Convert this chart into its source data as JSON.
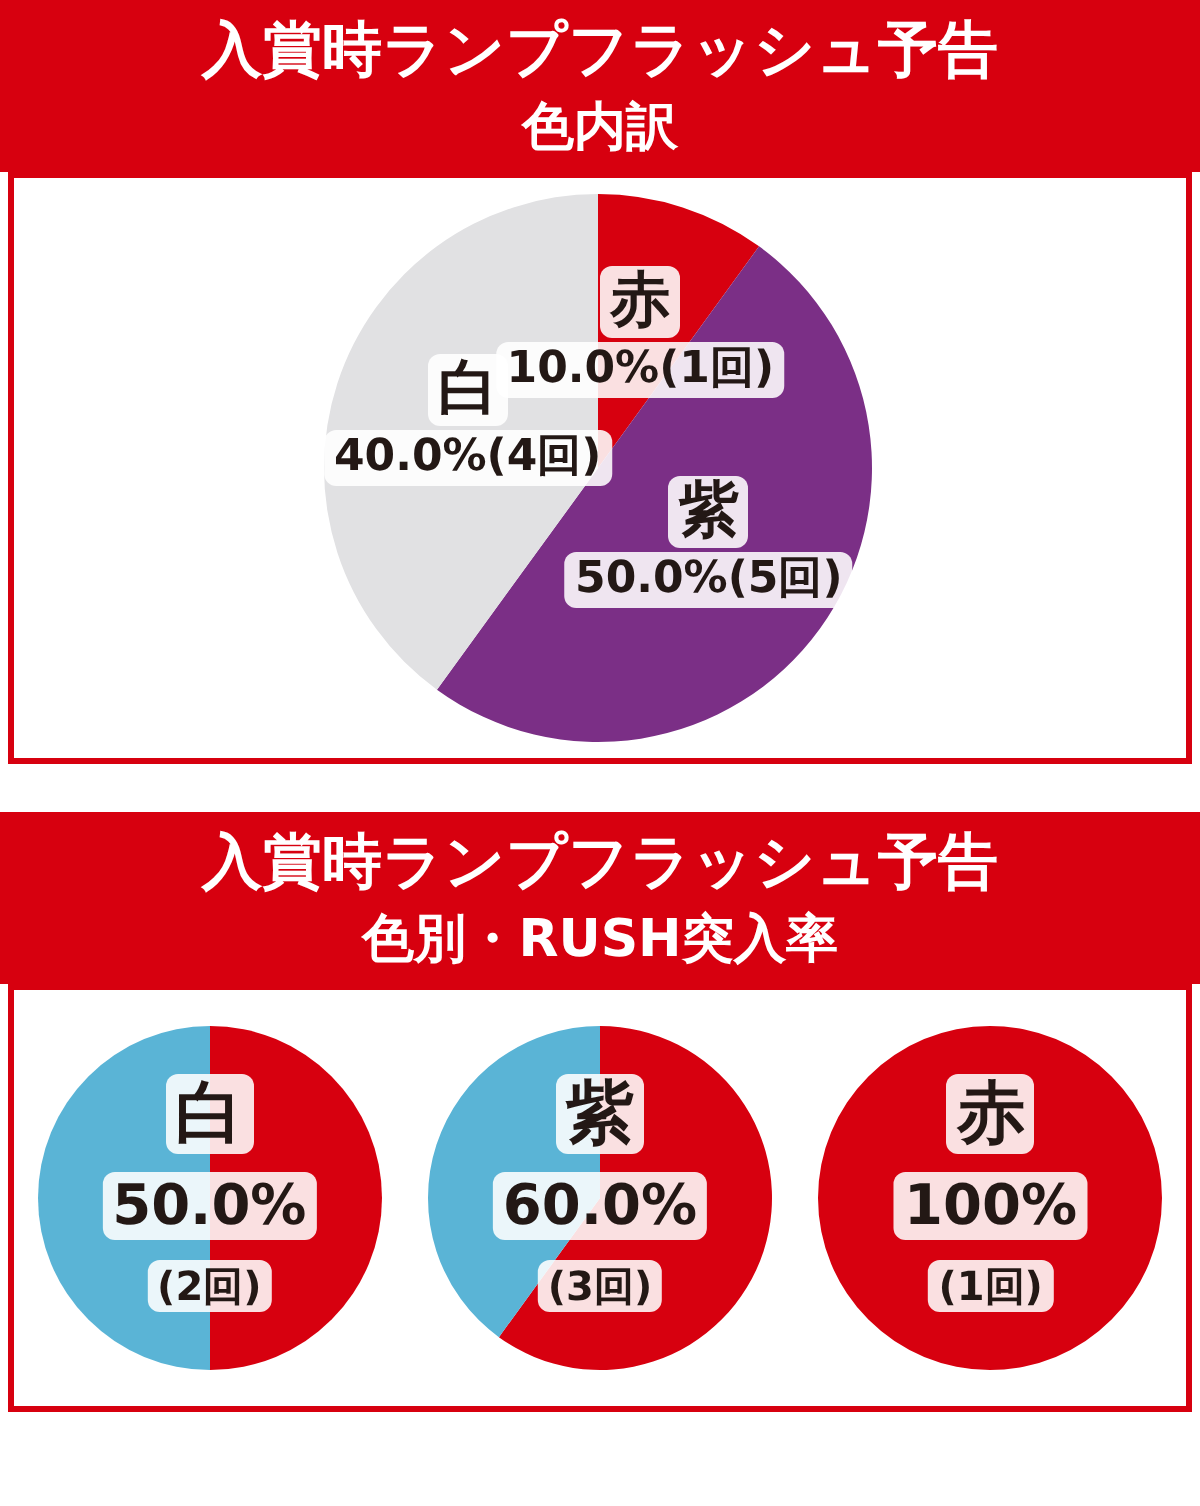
{
  "chart_data": [
    {
      "type": "pie",
      "title": "入賞時ランプフラッシュ予告",
      "subtitle": "色内訳",
      "categories": [
        "赤",
        "紫",
        "白"
      ],
      "values": [
        10,
        50,
        40
      ],
      "colors": [
        "#d7000f",
        "#7b2f86",
        "#e1e1e3"
      ],
      "value_labels": [
        "10.0%(1回)",
        "50.0%(5回)",
        "40.0%(4回)"
      ]
    },
    {
      "type": "other",
      "title": "入賞時ランプフラッシュ予告",
      "subtitle": "色別・RUSH突入率"
    },
    {
      "type": "pie",
      "title": "白",
      "categories": [
        null,
        null
      ],
      "values": [
        50,
        50
      ],
      "colors": [
        "#d7000f",
        "#5ab4d6"
      ],
      "value_labels": [
        "50.0%",
        null
      ],
      "annotations": [
        "(2回)"
      ]
    },
    {
      "type": "pie",
      "title": "紫",
      "categories": [
        null,
        null
      ],
      "values": [
        60,
        40
      ],
      "colors": [
        "#d7000f",
        "#5ab4d6"
      ],
      "value_labels": [
        "60.0%",
        null
      ],
      "annotations": [
        "(3回)"
      ]
    },
    {
      "type": "pie",
      "title": "赤",
      "categories": [
        null
      ],
      "values": [
        100
      ],
      "colors": [
        "#d7000f"
      ],
      "value_labels": [
        "100%"
      ],
      "annotations": [
        "(1回)"
      ]
    }
  ]
}
